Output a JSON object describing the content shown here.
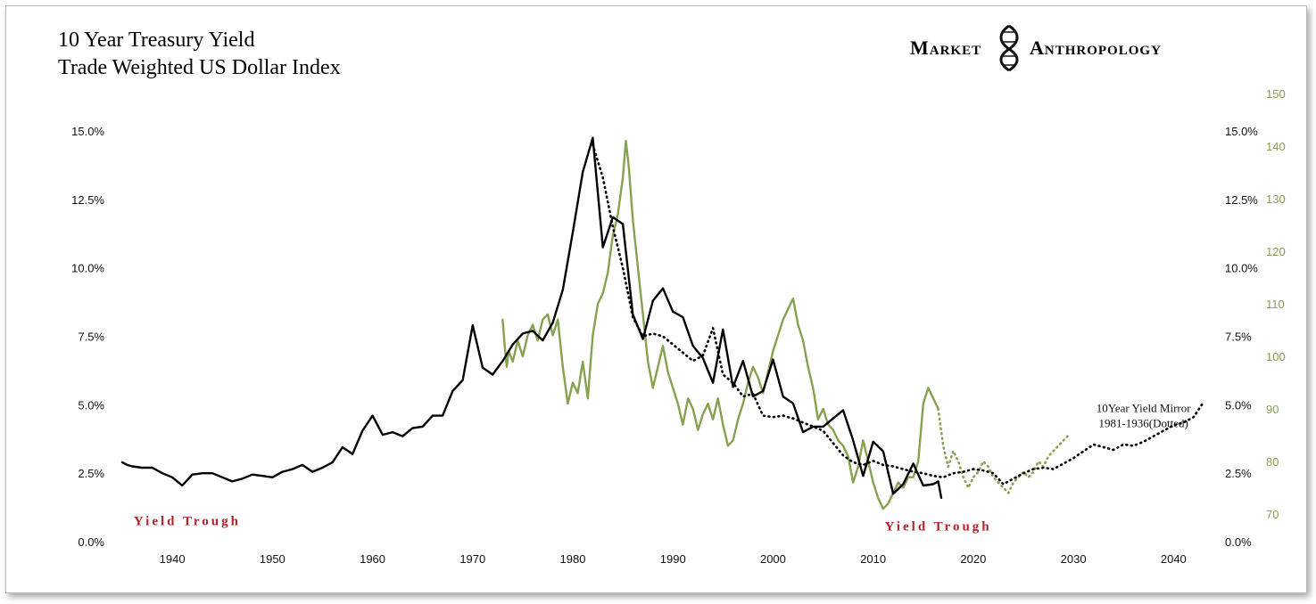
{
  "colors": {
    "yield": "#000000",
    "dollar": "#86a150",
    "trough": "#b3232a",
    "text": "#111111",
    "frame": "#b9b9b9"
  },
  "logo": {
    "word1": "Market",
    "word2": "Anthropology",
    "icon": "dna-helix-icon"
  },
  "chart_data": {
    "type": "line",
    "title": "10 Year Treasury Yield",
    "subtitle": "Trade Weighted US Dollar Index",
    "x_ticks": [
      "1940",
      "1950",
      "1960",
      "1970",
      "1980",
      "1990",
      "2000",
      "2010",
      "2020",
      "2030",
      "2040"
    ],
    "xlim": [
      1935,
      2043
    ],
    "left_axis": {
      "ticks": [
        "15.0%",
        "12.5%",
        "10.0%",
        "7.5%",
        "5.0%",
        "2.5%",
        "0.0%"
      ],
      "ylim": [
        0,
        15
      ]
    },
    "right_axis_yield": {
      "ticks": [
        "15.0%",
        "12.5%",
        "10.0%",
        "7.5%",
        "5.0%",
        "2.5%",
        "0.0%"
      ],
      "ylim": [
        0,
        15
      ]
    },
    "right_axis_dollar": {
      "ticks": [
        "150",
        "140",
        "130",
        "120",
        "110",
        "100",
        "90",
        "80",
        "70"
      ],
      "ylim": [
        70,
        150
      ]
    },
    "annotations": [
      {
        "text": "Yield Trough",
        "x": 1941.5,
        "y": 0.6
      },
      {
        "text": "Yield Trough",
        "x": 2016.5,
        "y": 0.4
      },
      {
        "line1": "10Year Yield Mirror",
        "line2": "1981-1936(Dotted)",
        "x": 2037,
        "y": 4.9
      }
    ],
    "series": [
      {
        "key": "yield",
        "style": "solid",
        "axis": "yield",
        "points": [
          [
            1935,
            2.9
          ],
          [
            1935.5,
            2.8
          ],
          [
            1936,
            2.75
          ],
          [
            1937,
            2.7
          ],
          [
            1938,
            2.7
          ],
          [
            1939,
            2.5
          ],
          [
            1940,
            2.35
          ],
          [
            1941,
            2.05
          ],
          [
            1942,
            2.45
          ],
          [
            1943,
            2.5
          ],
          [
            1944,
            2.5
          ],
          [
            1945,
            2.35
          ],
          [
            1946,
            2.2
          ],
          [
            1947,
            2.3
          ],
          [
            1948,
            2.45
          ],
          [
            1949,
            2.4
          ],
          [
            1950,
            2.35
          ],
          [
            1951,
            2.55
          ],
          [
            1952,
            2.65
          ],
          [
            1953,
            2.8
          ],
          [
            1954,
            2.55
          ],
          [
            1955,
            2.7
          ],
          [
            1956,
            2.9
          ],
          [
            1957,
            3.45
          ],
          [
            1958,
            3.2
          ],
          [
            1959,
            4.05
          ],
          [
            1960,
            4.6
          ],
          [
            1961,
            3.9
          ],
          [
            1962,
            4.0
          ],
          [
            1963,
            3.85
          ],
          [
            1964,
            4.15
          ],
          [
            1965,
            4.2
          ],
          [
            1966,
            4.6
          ],
          [
            1967,
            4.6
          ],
          [
            1968,
            5.5
          ],
          [
            1969,
            5.9
          ],
          [
            1970,
            7.9
          ],
          [
            1971,
            6.35
          ],
          [
            1972,
            6.1
          ],
          [
            1973,
            6.6
          ],
          [
            1974,
            7.2
          ],
          [
            1975,
            7.6
          ],
          [
            1976,
            7.7
          ],
          [
            1977,
            7.35
          ],
          [
            1978,
            8.0
          ],
          [
            1979,
            9.2
          ],
          [
            1980,
            11.3
          ],
          [
            1981,
            13.5
          ],
          [
            1982,
            14.75
          ],
          [
            1983,
            10.75
          ],
          [
            1984,
            11.85
          ],
          [
            1985,
            11.6
          ],
          [
            1986,
            8.3
          ],
          [
            1987,
            7.4
          ],
          [
            1988,
            8.8
          ],
          [
            1989,
            9.25
          ],
          [
            1990,
            8.4
          ],
          [
            1991,
            8.2
          ],
          [
            1992,
            7.15
          ],
          [
            1993,
            6.7
          ],
          [
            1994,
            5.8
          ],
          [
            1995,
            7.75
          ],
          [
            1996,
            5.65
          ],
          [
            1997,
            6.6
          ],
          [
            1998,
            5.3
          ],
          [
            1999,
            5.5
          ],
          [
            2000,
            6.65
          ],
          [
            2001,
            5.3
          ],
          [
            2002,
            5.05
          ],
          [
            2003,
            4.0
          ],
          [
            2004,
            4.2
          ],
          [
            2005,
            4.2
          ],
          [
            2006,
            4.5
          ],
          [
            2007,
            4.8
          ],
          [
            2008,
            3.7
          ],
          [
            2009,
            2.4
          ],
          [
            2010,
            3.65
          ],
          [
            2011,
            3.3
          ],
          [
            2012,
            1.75
          ],
          [
            2013,
            2.1
          ],
          [
            2014,
            2.85
          ],
          [
            2015,
            2.05
          ],
          [
            2016,
            2.1
          ],
          [
            2016.5,
            2.2
          ],
          [
            2016.8,
            1.6
          ]
        ]
      },
      {
        "key": "yield_mirror",
        "style": "dotted",
        "axis": "yield",
        "points": [
          [
            1982,
            14.5
          ],
          [
            1983,
            13.3
          ],
          [
            1984,
            11.5
          ],
          [
            1985,
            10.0
          ],
          [
            1986,
            8.2
          ],
          [
            1987,
            7.5
          ],
          [
            1988,
            7.6
          ],
          [
            1989,
            7.5
          ],
          [
            1990,
            7.2
          ],
          [
            1991,
            6.9
          ],
          [
            1992,
            6.6
          ],
          [
            1993,
            6.8
          ],
          [
            1994,
            7.8
          ],
          [
            1995,
            6.1
          ],
          [
            1996,
            5.8
          ],
          [
            1997,
            5.3
          ],
          [
            1998,
            5.4
          ],
          [
            1999,
            4.6
          ],
          [
            2000,
            4.55
          ],
          [
            2001,
            4.6
          ],
          [
            2002,
            4.5
          ],
          [
            2003,
            4.35
          ],
          [
            2004,
            4.2
          ],
          [
            2005,
            4.05
          ],
          [
            2006,
            3.6
          ],
          [
            2007,
            3.15
          ],
          [
            2008,
            2.9
          ],
          [
            2009,
            2.8
          ],
          [
            2010,
            2.95
          ],
          [
            2011,
            2.8
          ],
          [
            2012,
            2.75
          ],
          [
            2013,
            2.65
          ],
          [
            2014,
            2.55
          ],
          [
            2015,
            2.5
          ],
          [
            2016,
            2.4
          ],
          [
            2017,
            2.35
          ],
          [
            2018,
            2.5
          ],
          [
            2019,
            2.55
          ],
          [
            2020,
            2.65
          ],
          [
            2021,
            2.6
          ],
          [
            2022,
            2.5
          ],
          [
            2023,
            2.1
          ],
          [
            2024,
            2.3
          ],
          [
            2025,
            2.5
          ],
          [
            2026,
            2.65
          ],
          [
            2027,
            2.7
          ],
          [
            2028,
            2.65
          ],
          [
            2029,
            2.85
          ],
          [
            2030,
            3.05
          ],
          [
            2031,
            3.3
          ],
          [
            2032,
            3.55
          ],
          [
            2033,
            3.45
          ],
          [
            2034,
            3.35
          ],
          [
            2035,
            3.55
          ],
          [
            2036,
            3.5
          ],
          [
            2037,
            3.65
          ],
          [
            2038,
            3.85
          ],
          [
            2039,
            4.05
          ],
          [
            2040,
            4.25
          ],
          [
            2041,
            4.35
          ],
          [
            2042,
            4.55
          ],
          [
            2043,
            5.1
          ]
        ]
      },
      {
        "key": "dollar",
        "style": "solid",
        "axis": "dollar",
        "points": [
          [
            1973,
            107
          ],
          [
            1973.2,
            102
          ],
          [
            1973.4,
            98
          ],
          [
            1973.6,
            101
          ],
          [
            1974,
            99
          ],
          [
            1974.5,
            103
          ],
          [
            1975,
            100
          ],
          [
            1975.5,
            104
          ],
          [
            1976,
            106
          ],
          [
            1976.5,
            103
          ],
          [
            1977,
            107
          ],
          [
            1977.5,
            108
          ],
          [
            1978,
            104
          ],
          [
            1978.5,
            107
          ],
          [
            1979,
            98
          ],
          [
            1979.5,
            91
          ],
          [
            1980,
            95
          ],
          [
            1980.5,
            93
          ],
          [
            1981,
            99
          ],
          [
            1981.5,
            92
          ],
          [
            1982,
            104
          ],
          [
            1982.5,
            110
          ],
          [
            1983,
            112
          ],
          [
            1983.5,
            116
          ],
          [
            1984,
            123
          ],
          [
            1984.5,
            127
          ],
          [
            1985,
            134
          ],
          [
            1985.3,
            141
          ],
          [
            1985.6,
            136
          ],
          [
            1986,
            126
          ],
          [
            1986.5,
            117
          ],
          [
            1987,
            108
          ],
          [
            1987.5,
            99
          ],
          [
            1988,
            94
          ],
          [
            1988.5,
            98
          ],
          [
            1989,
            102
          ],
          [
            1989.5,
            97
          ],
          [
            1990,
            94
          ],
          [
            1990.5,
            91
          ],
          [
            1991,
            87
          ],
          [
            1991.5,
            92
          ],
          [
            1992,
            90
          ],
          [
            1992.5,
            86
          ],
          [
            1993,
            89
          ],
          [
            1993.5,
            91
          ],
          [
            1994,
            88
          ],
          [
            1994.5,
            92
          ],
          [
            1995,
            87
          ],
          [
            1995.5,
            83
          ],
          [
            1996,
            84
          ],
          [
            1996.5,
            88
          ],
          [
            1997,
            91
          ],
          [
            1997.5,
            95
          ],
          [
            1998,
            98
          ],
          [
            1998.5,
            96
          ],
          [
            1999,
            93
          ],
          [
            1999.5,
            97
          ],
          [
            2000,
            101
          ],
          [
            2000.5,
            104
          ],
          [
            2001,
            107
          ],
          [
            2001.5,
            109
          ],
          [
            2002,
            111
          ],
          [
            2002.5,
            106
          ],
          [
            2003,
            103
          ],
          [
            2003.5,
            98
          ],
          [
            2004,
            94
          ],
          [
            2004.5,
            88
          ],
          [
            2005,
            90
          ],
          [
            2005.5,
            87
          ],
          [
            2006,
            86
          ],
          [
            2006.5,
            84
          ],
          [
            2007,
            83
          ],
          [
            2007.5,
            81
          ],
          [
            2008,
            76
          ],
          [
            2008.5,
            79
          ],
          [
            2009,
            84
          ],
          [
            2009.5,
            80
          ],
          [
            2010,
            76
          ],
          [
            2010.5,
            73
          ],
          [
            2011,
            71
          ],
          [
            2011.5,
            72
          ],
          [
            2012,
            74
          ],
          [
            2012.5,
            76
          ],
          [
            2013,
            75
          ],
          [
            2013.5,
            77
          ],
          [
            2014,
            77
          ],
          [
            2014.5,
            80
          ],
          [
            2015,
            91
          ],
          [
            2015.5,
            94
          ],
          [
            2016,
            92
          ],
          [
            2016.5,
            90
          ]
        ]
      },
      {
        "key": "dollar_projection",
        "style": "dotted",
        "axis": "dollar",
        "points": [
          [
            2016.5,
            90
          ],
          [
            2017,
            83
          ],
          [
            2017.5,
            79
          ],
          [
            2018,
            82
          ],
          [
            2018.5,
            80
          ],
          [
            2019,
            77
          ],
          [
            2019.5,
            75
          ],
          [
            2020,
            77
          ],
          [
            2020.5,
            78
          ],
          [
            2021,
            80
          ],
          [
            2021.5,
            79
          ],
          [
            2022,
            77
          ],
          [
            2022.5,
            76
          ],
          [
            2023,
            75
          ],
          [
            2023.5,
            74
          ],
          [
            2024,
            76
          ],
          [
            2024.5,
            77
          ],
          [
            2025,
            78
          ],
          [
            2025.5,
            77
          ],
          [
            2026,
            78
          ],
          [
            2026.5,
            80
          ],
          [
            2027,
            79
          ],
          [
            2027.5,
            81
          ],
          [
            2028,
            82
          ],
          [
            2028.5,
            83
          ],
          [
            2029,
            84
          ],
          [
            2029.5,
            85
          ]
        ]
      }
    ]
  }
}
